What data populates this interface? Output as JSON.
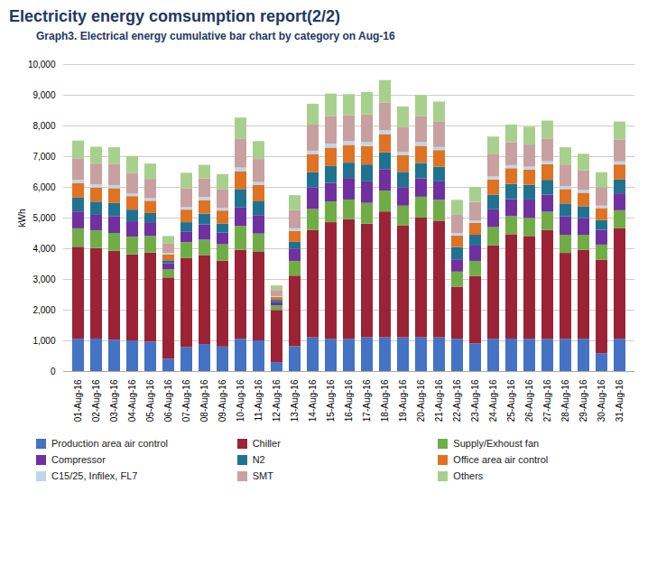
{
  "chart_data": {
    "type": "bar",
    "stacked": true,
    "title": "Electricity energy comsumption report(2/2)",
    "subtitle": "Graph3.  Electrical energy cumulative bar chart  by category on Aug-16",
    "ylabel": "kWh",
    "ylim": [
      0,
      10000
    ],
    "yticks": [
      0,
      {
        "value": 1000,
        "label": "1,000"
      },
      {
        "value": 2000,
        "label": "2,000"
      },
      {
        "value": 3000,
        "label": "3,000"
      },
      {
        "value": 4000,
        "label": "4,000"
      },
      {
        "value": 5000,
        "label": "5,000"
      },
      {
        "value": 6000,
        "label": "6,000"
      },
      {
        "value": 7000,
        "label": "7,000"
      },
      {
        "value": 8000,
        "label": "8,000"
      },
      {
        "value": 9000,
        "label": "9,000"
      },
      {
        "value": 10000,
        "label": "10,000"
      }
    ],
    "grid": true,
    "legend": "bottom",
    "categories": [
      "01-Aug-16",
      "02-Aug-16",
      "03-Aug-16",
      "04-Aug-16",
      "05-Aug-16",
      "06-Aug-16",
      "07-Aug-16",
      "08-Aug-16",
      "09-Aug-16",
      "10-Aug-16",
      "11-Aug-16",
      "12-Aug-16",
      "13-Aug-16",
      "14-Aug-16",
      "15-Aug-16",
      "16-Aug-16",
      "17-Aug-16",
      "18-Aug-16",
      "19-Aug-16",
      "20-Aug-16",
      "21-Aug-16",
      "22-Aug-16",
      "23-Aug-16",
      "24-Aug-16",
      "25-Aug-16",
      "26-Aug-16",
      "27-Aug-16",
      "28-Aug-16",
      "29-Aug-16",
      "30-Aug-16",
      "31-Aug-16"
    ],
    "series": [
      {
        "name": "Production area air control",
        "color": "#4472C4",
        "values": [
          1050,
          1060,
          1020,
          1000,
          960,
          400,
          780,
          880,
          800,
          1050,
          1000,
          290,
          810,
          1100,
          1050,
          1050,
          1100,
          1100,
          1100,
          1100,
          1100,
          1050,
          900,
          1050,
          1060,
          1050,
          1050,
          1050,
          1050,
          580,
          1050
        ]
      },
      {
        "name": "Chiller",
        "color": "#9B2335",
        "values": [
          3000,
          2950,
          2900,
          2800,
          2900,
          2650,
          2900,
          2900,
          2800,
          2900,
          2900,
          1700,
          2300,
          3500,
          3800,
          3900,
          3700,
          4100,
          3650,
          3900,
          3800,
          1700,
          2200,
          3050,
          3400,
          3350,
          3550,
          2800,
          2900,
          3050,
          3600
        ]
      },
      {
        "name": "Supply/Exhoust fan",
        "color": "#70AD47",
        "values": [
          600,
          580,
          580,
          580,
          540,
          260,
          520,
          500,
          530,
          780,
          580,
          150,
          480,
          680,
          680,
          640,
          680,
          680,
          640,
          680,
          680,
          490,
          490,
          590,
          590,
          590,
          590,
          590,
          490,
          490,
          590
        ]
      },
      {
        "name": "Compressor",
        "color": "#7030A0",
        "values": [
          550,
          500,
          550,
          500,
          450,
          200,
          350,
          500,
          380,
          600,
          600,
          100,
          400,
          700,
          600,
          700,
          700,
          700,
          600,
          600,
          600,
          400,
          500,
          580,
          550,
          600,
          560,
          600,
          550,
          480,
          550
        ]
      },
      {
        "name": "N2",
        "color": "#1F7391",
        "values": [
          450,
          430,
          430,
          380,
          300,
          100,
          300,
          350,
          300,
          600,
          450,
          80,
          220,
          500,
          550,
          500,
          550,
          550,
          500,
          500,
          480,
          400,
          350,
          480,
          500,
          480,
          480,
          420,
          380,
          320,
          450
        ]
      },
      {
        "name": "Office area air control",
        "color": "#E07222",
        "values": [
          480,
          460,
          480,
          440,
          400,
          190,
          410,
          440,
          420,
          580,
          530,
          90,
          360,
          580,
          600,
          580,
          600,
          590,
          540,
          560,
          540,
          370,
          390,
          490,
          510,
          490,
          510,
          470,
          440,
          390,
          490
        ]
      },
      {
        "name": "C15/25, Infilex, FL7",
        "color": "#BDD7EE",
        "values": [
          100,
          100,
          100,
          80,
          80,
          50,
          80,
          100,
          80,
          120,
          100,
          30,
          80,
          120,
          130,
          120,
          130,
          130,
          110,
          120,
          100,
          80,
          80,
          100,
          100,
          100,
          100,
          100,
          90,
          80,
          100
        ]
      },
      {
        "name": "SMT",
        "color": "#C9A0A0",
        "values": [
          700,
          680,
          680,
          680,
          630,
          300,
          620,
          600,
          620,
          950,
          750,
          200,
          600,
          850,
          900,
          850,
          900,
          900,
          800,
          850,
          820,
          600,
          600,
          720,
          740,
          720,
          740,
          700,
          640,
          600,
          720
        ]
      },
      {
        "name": "Others",
        "color": "#A8D08D",
        "values": [
          580,
          550,
          550,
          550,
          500,
          250,
          500,
          450,
          480,
          680,
          580,
          150,
          480,
          680,
          730,
          680,
          730,
          730,
          680,
          680,
          660,
          490,
          490,
          580,
          580,
          580,
          580,
          560,
          540,
          490,
          580
        ]
      }
    ],
    "title_color": "#1F3864",
    "subtitle_color": "#1F3864"
  }
}
